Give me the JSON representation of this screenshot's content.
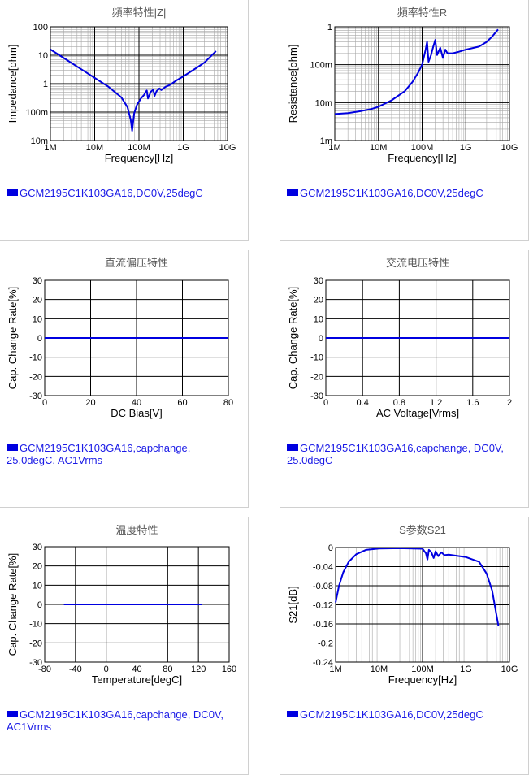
{
  "colors": {
    "series": "#0000e0",
    "grid_major": "#000000",
    "grid_minor": "#a8a8a8",
    "title": "#555555",
    "legend_text": "#1a1ae6"
  },
  "chart_data": [
    {
      "id": "impedance",
      "type": "line",
      "title": "頻率特性|Z|",
      "xlabel": "Frequency[Hz]",
      "ylabel": "Impedance[ohm]",
      "xscale": "log",
      "yscale": "log",
      "xlim": [
        1000000,
        10000000000
      ],
      "ylim": [
        0.01,
        100
      ],
      "xticks": [
        {
          "v": 1000000,
          "label": "1M"
        },
        {
          "v": 10000000,
          "label": "10M"
        },
        {
          "v": 100000000,
          "label": "100M"
        },
        {
          "v": 1000000000,
          "label": "1G"
        },
        {
          "v": 10000000000,
          "label": "10G"
        }
      ],
      "yticks": [
        {
          "v": 100,
          "label": "100"
        },
        {
          "v": 10,
          "label": "10"
        },
        {
          "v": 1,
          "label": "1"
        },
        {
          "v": 0.1,
          "label": "100m"
        },
        {
          "v": 0.01,
          "label": "10m"
        }
      ],
      "grid": true,
      "series": [
        {
          "name": "GCM2195C1K103GA16,DC0V,25degC",
          "points": [
            [
              1000000,
              16
            ],
            [
              2000000,
              8
            ],
            [
              5000000,
              3.2
            ],
            [
              10000000,
              1.6
            ],
            [
              20000000,
              0.8
            ],
            [
              40000000,
              0.33
            ],
            [
              55000000,
              0.15
            ],
            [
              65000000,
              0.055
            ],
            [
              70000000,
              0.022
            ],
            [
              78000000,
              0.09
            ],
            [
              90000000,
              0.18
            ],
            [
              110000000,
              0.3
            ],
            [
              130000000,
              0.4
            ],
            [
              150000000,
              0.58
            ],
            [
              160000000,
              0.3
            ],
            [
              185000000,
              0.52
            ],
            [
              210000000,
              0.62
            ],
            [
              225000000,
              0.37
            ],
            [
              250000000,
              0.55
            ],
            [
              290000000,
              0.68
            ],
            [
              320000000,
              0.6
            ],
            [
              400000000,
              0.78
            ],
            [
              500000000,
              0.9
            ],
            [
              700000000,
              1.3
            ],
            [
              1000000000,
              1.8
            ],
            [
              2000000000,
              3.6
            ],
            [
              3000000000,
              5.5
            ],
            [
              5500000000,
              14
            ]
          ]
        }
      ],
      "legend": [
        "GCM2195C1K103GA16,DC0V,25degC"
      ]
    },
    {
      "id": "resistance",
      "type": "line",
      "title": "頻率特性R",
      "xlabel": "Frequency[Hz]",
      "ylabel": "Resistance[ohm]",
      "xscale": "log",
      "yscale": "log",
      "xlim": [
        1000000,
        10000000000
      ],
      "ylim": [
        0.001,
        1
      ],
      "xticks": [
        {
          "v": 1000000,
          "label": "1M"
        },
        {
          "v": 10000000,
          "label": "10M"
        },
        {
          "v": 100000000,
          "label": "100M"
        },
        {
          "v": 1000000000,
          "label": "1G"
        },
        {
          "v": 10000000000,
          "label": "10G"
        }
      ],
      "yticks": [
        {
          "v": 1,
          "label": "1"
        },
        {
          "v": 0.1,
          "label": "100m"
        },
        {
          "v": 0.01,
          "label": "10m"
        },
        {
          "v": 0.001,
          "label": "1m"
        }
      ],
      "grid": true,
      "series": [
        {
          "name": "GCM2195C1K103GA16,DC0V,25degC",
          "points": [
            [
              1000000,
              0.005
            ],
            [
              2000000,
              0.0053
            ],
            [
              4000000,
              0.006
            ],
            [
              7000000,
              0.0068
            ],
            [
              10000000,
              0.0078
            ],
            [
              20000000,
              0.0115
            ],
            [
              40000000,
              0.02
            ],
            [
              60000000,
              0.035
            ],
            [
              80000000,
              0.06
            ],
            [
              100000000,
              0.1
            ],
            [
              120000000,
              0.25
            ],
            [
              130000000,
              0.4
            ],
            [
              140000000,
              0.12
            ],
            [
              160000000,
              0.18
            ],
            [
              180000000,
              0.3
            ],
            [
              200000000,
              0.45
            ],
            [
              220000000,
              0.18
            ],
            [
              260000000,
              0.28
            ],
            [
              300000000,
              0.15
            ],
            [
              340000000,
              0.25
            ],
            [
              380000000,
              0.2
            ],
            [
              500000000,
              0.2
            ],
            [
              700000000,
              0.22
            ],
            [
              1000000000,
              0.25
            ],
            [
              2000000000,
              0.3
            ],
            [
              3000000000,
              0.4
            ],
            [
              4000000000,
              0.55
            ],
            [
              5500000000,
              0.85
            ]
          ]
        }
      ],
      "legend": [
        "GCM2195C1K103GA16,DC0V,25degC"
      ]
    },
    {
      "id": "dc_bias",
      "type": "line",
      "title": "直流偏压特性",
      "xlabel": "DC Bias[V]",
      "ylabel": "Cap. Change Rate[%]",
      "xscale": "linear",
      "yscale": "linear",
      "xlim": [
        0,
        80
      ],
      "ylim": [
        -30,
        30
      ],
      "xticks": [
        {
          "v": 0,
          "label": "0"
        },
        {
          "v": 20,
          "label": "20"
        },
        {
          "v": 40,
          "label": "40"
        },
        {
          "v": 60,
          "label": "60"
        },
        {
          "v": 80,
          "label": "80"
        }
      ],
      "yticks": [
        {
          "v": 30,
          "label": "30"
        },
        {
          "v": 20,
          "label": "20"
        },
        {
          "v": 10,
          "label": "10"
        },
        {
          "v": 0,
          "label": "0"
        },
        {
          "v": -10,
          "label": "-10"
        },
        {
          "v": -20,
          "label": "-20"
        },
        {
          "v": -30,
          "label": "-30"
        }
      ],
      "grid": true,
      "series": [
        {
          "name": "GCM2195C1K103GA16,capchange, 25.0degC, AC1Vrms",
          "points": [
            [
              0,
              0
            ],
            [
              80,
              0
            ]
          ]
        }
      ],
      "legend": [
        "GCM2195C1K103GA16,capchange,",
        "25.0degC, AC1Vrms"
      ]
    },
    {
      "id": "ac_voltage",
      "type": "line",
      "title": "交流电压特性",
      "xlabel": "AC Voltage[Vrms]",
      "ylabel": "Cap. Change Rate[%]",
      "xscale": "linear",
      "yscale": "linear",
      "xlim": [
        0,
        2
      ],
      "ylim": [
        -30,
        30
      ],
      "xticks": [
        {
          "v": 0,
          "label": "0"
        },
        {
          "v": 0.4,
          "label": "0.4"
        },
        {
          "v": 0.8,
          "label": "0.8"
        },
        {
          "v": 1.2,
          "label": "1.2"
        },
        {
          "v": 1.6,
          "label": "1.6"
        },
        {
          "v": 2,
          "label": "2"
        }
      ],
      "yticks": [
        {
          "v": 30,
          "label": "30"
        },
        {
          "v": 20,
          "label": "20"
        },
        {
          "v": 10,
          "label": "10"
        },
        {
          "v": 0,
          "label": "0"
        },
        {
          "v": -10,
          "label": "-10"
        },
        {
          "v": -20,
          "label": "-20"
        },
        {
          "v": -30,
          "label": "-30"
        }
      ],
      "grid": true,
      "series": [
        {
          "name": "GCM2195C1K103GA16,capchange, DC0V, 25.0degC",
          "points": [
            [
              0,
              0
            ],
            [
              2,
              0
            ]
          ]
        }
      ],
      "legend": [
        "GCM2195C1K103GA16,capchange, DC0V,",
        "25.0degC"
      ]
    },
    {
      "id": "temperature",
      "type": "line",
      "title": "温度特性",
      "xlabel": "Temperature[degC]",
      "ylabel": "Cap. Change Rate[%]",
      "xscale": "linear",
      "yscale": "linear",
      "xlim": [
        -80,
        160
      ],
      "ylim": [
        -30,
        30
      ],
      "xticks": [
        {
          "v": -80,
          "label": "-80"
        },
        {
          "v": -40,
          "label": "-40"
        },
        {
          "v": 0,
          "label": "0"
        },
        {
          "v": 40,
          "label": "40"
        },
        {
          "v": 80,
          "label": "80"
        },
        {
          "v": 120,
          "label": "120"
        },
        {
          "v": 160,
          "label": "160"
        }
      ],
      "yticks": [
        {
          "v": 30,
          "label": "30"
        },
        {
          "v": 20,
          "label": "20"
        },
        {
          "v": 10,
          "label": "10"
        },
        {
          "v": 0,
          "label": "0"
        },
        {
          "v": -10,
          "label": "-10"
        },
        {
          "v": -20,
          "label": "-20"
        },
        {
          "v": -30,
          "label": "-30"
        }
      ],
      "grid": true,
      "series": [
        {
          "name": "GCM2195C1K103GA16,capchange, DC0V, AC1Vrms",
          "points": [
            [
              -55,
              0
            ],
            [
              0,
              0
            ],
            [
              25,
              0
            ],
            [
              85,
              0
            ],
            [
              125,
              0
            ]
          ]
        }
      ],
      "legend": [
        "GCM2195C1K103GA16,capchange, DC0V,",
        "AC1Vrms"
      ]
    },
    {
      "id": "s21",
      "type": "line",
      "title": "S参数S21",
      "xlabel": "Frequency[Hz]",
      "ylabel": "S21[dB]",
      "xscale": "log",
      "yscale": "linear",
      "xlim": [
        1000000,
        10000000000
      ],
      "ylim": [
        -0.24,
        0
      ],
      "xticks": [
        {
          "v": 1000000,
          "label": "1M"
        },
        {
          "v": 10000000,
          "label": "10M"
        },
        {
          "v": 100000000,
          "label": "100M"
        },
        {
          "v": 1000000000,
          "label": "1G"
        },
        {
          "v": 10000000000,
          "label": "10G"
        }
      ],
      "yticks": [
        {
          "v": 0,
          "label": "0"
        },
        {
          "v": -0.04,
          "label": "-0.04"
        },
        {
          "v": -0.08,
          "label": "-0.08"
        },
        {
          "v": -0.12,
          "label": "-0.12"
        },
        {
          "v": -0.16,
          "label": "-0.16"
        },
        {
          "v": -0.2,
          "label": "-0.2"
        },
        {
          "v": -0.24,
          "label": "-0.24"
        }
      ],
      "grid": true,
      "series": [
        {
          "name": "GCM2195C1K103GA16,DC0V,25degC",
          "points": [
            [
              1000000,
              -0.115
            ],
            [
              1200000,
              -0.08
            ],
            [
              1500000,
              -0.052
            ],
            [
              2000000,
              -0.03
            ],
            [
              3000000,
              -0.014
            ],
            [
              5000000,
              -0.005
            ],
            [
              10000000,
              -0.002
            ],
            [
              30000000,
              -0.0015
            ],
            [
              100000000,
              -0.0025
            ],
            [
              120000000,
              -0.012
            ],
            [
              130000000,
              -0.025
            ],
            [
              140000000,
              -0.005
            ],
            [
              160000000,
              -0.01
            ],
            [
              180000000,
              -0.022
            ],
            [
              200000000,
              -0.008
            ],
            [
              230000000,
              -0.018
            ],
            [
              270000000,
              -0.01
            ],
            [
              320000000,
              -0.016
            ],
            [
              400000000,
              -0.015
            ],
            [
              700000000,
              -0.018
            ],
            [
              1000000000,
              -0.02
            ],
            [
              2000000000,
              -0.03
            ],
            [
              3000000000,
              -0.055
            ],
            [
              4000000000,
              -0.09
            ],
            [
              5000000000,
              -0.14
            ],
            [
              5600000000,
              -0.165
            ]
          ]
        }
      ],
      "legend": [
        "GCM2195C1K103GA16,DC0V,25degC"
      ]
    }
  ]
}
